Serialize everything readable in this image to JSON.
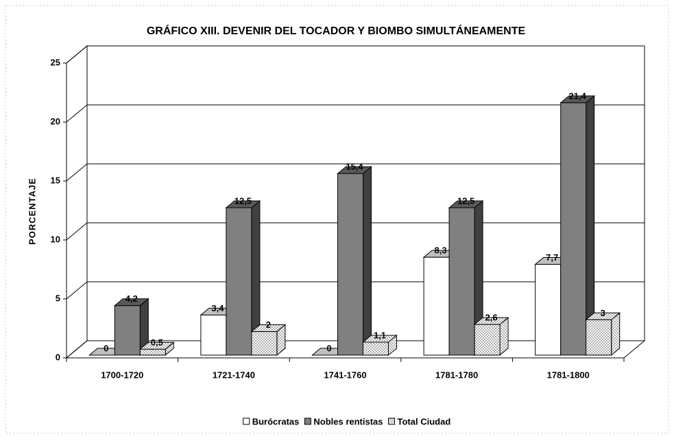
{
  "chart_data": {
    "type": "bar3d",
    "title": "GRÁFICO XIII. DEVENIR DEL TOCADOR Y BIOMBO SIMULTÁNEAMENTE",
    "y_axis_label": "PORCENTAJE",
    "categories": [
      "1700-1720",
      "1721-1740",
      "1741-1760",
      "1781-1780",
      "1781-1800"
    ],
    "series": [
      {
        "name": "Burócratas",
        "color": "#ffffff",
        "values": [
          0,
          3.4,
          0,
          8.3,
          7.7
        ],
        "value_labels": [
          "0",
          "3,4",
          "0",
          "8,3",
          "7,7"
        ]
      },
      {
        "name": "Nobles rentistas",
        "color": "#808080",
        "values": [
          4.2,
          12.5,
          15.4,
          12.5,
          21.4
        ],
        "value_labels": [
          "4,2",
          "12,5",
          "15,4",
          "12,5",
          "21,4"
        ]
      },
      {
        "name": "Total Ciudad",
        "color": "#ffffff",
        "pattern": "dots",
        "values": [
          0.5,
          2,
          1.1,
          2.6,
          3
        ],
        "value_labels": [
          "0,5",
          "2",
          "1,1",
          "2,6",
          "3"
        ]
      }
    ],
    "ylim": [
      0,
      25
    ],
    "yticks": [
      0,
      5,
      10,
      15,
      20,
      25
    ],
    "grid": true,
    "legend": "bottom"
  }
}
